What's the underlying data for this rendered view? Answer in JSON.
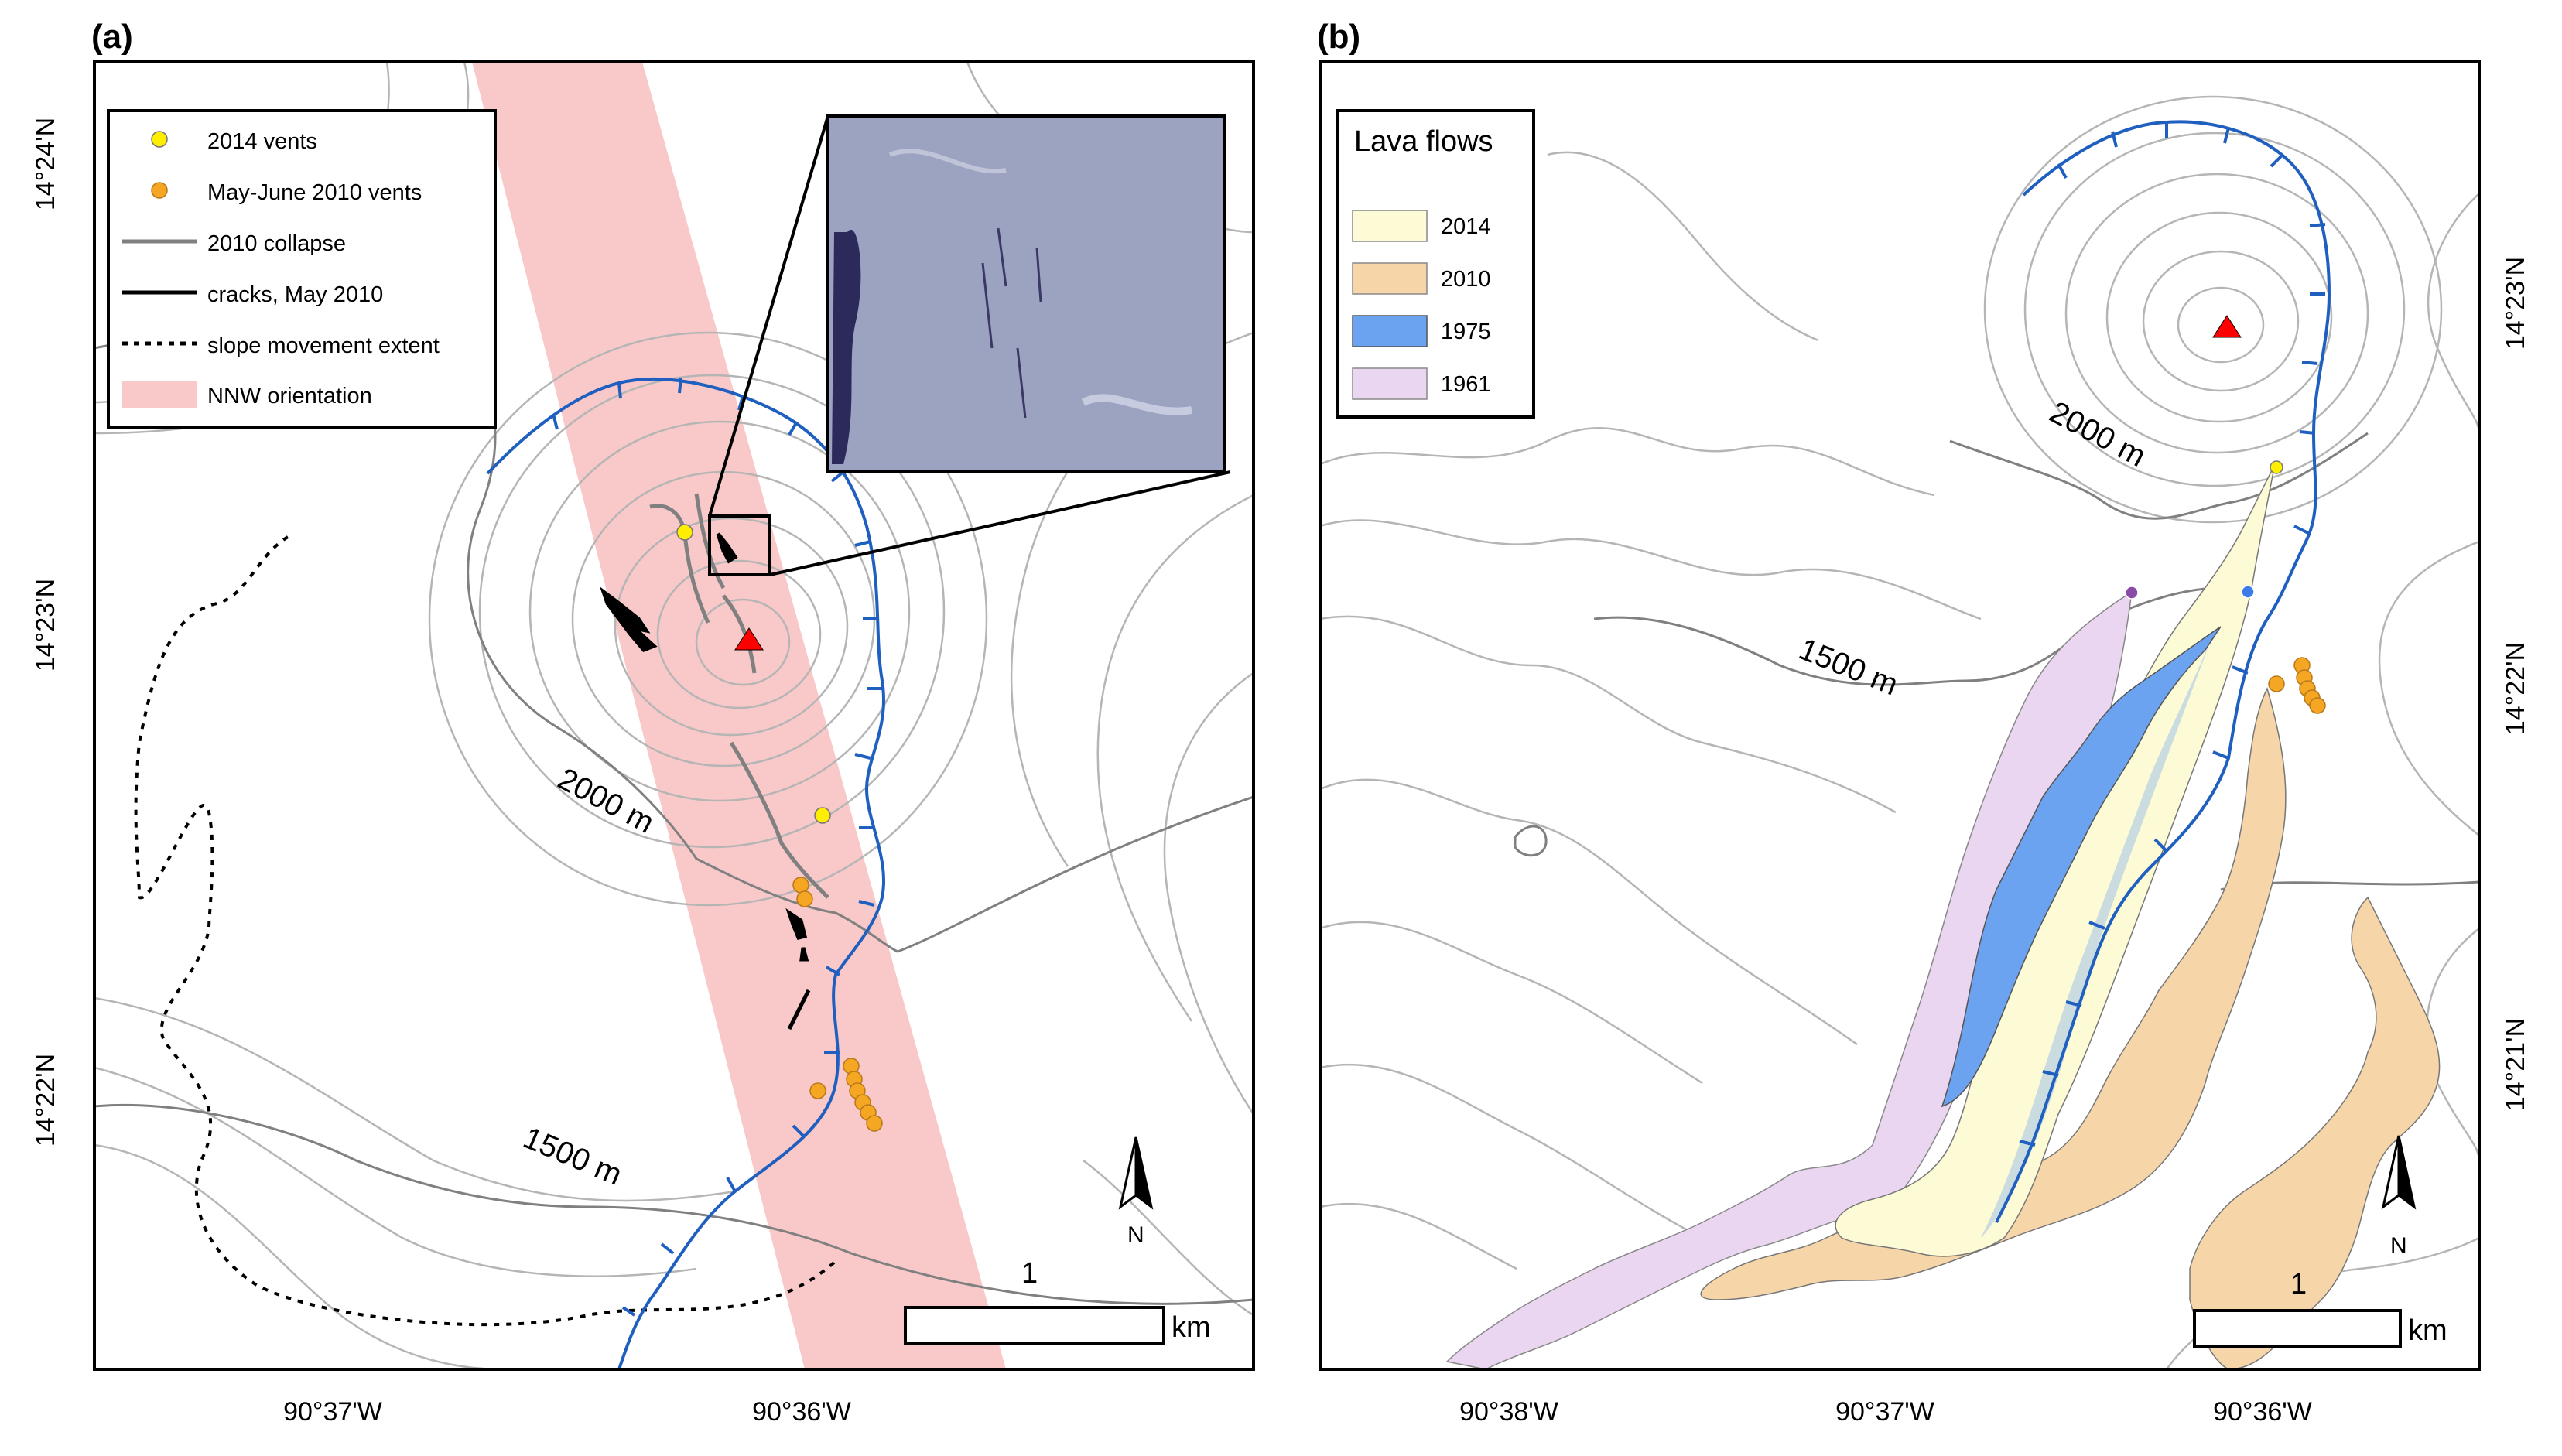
{
  "figure": {
    "panels": [
      {
        "id": "a",
        "label": "(a)",
        "lat_ticks": [
          "14°24'N",
          "14°23'N",
          "14°22'N"
        ],
        "lon_ticks": [
          "90°37'W",
          "90°36'W"
        ],
        "contour_labels": [
          "2000 m",
          "1500 m"
        ],
        "legend": [
          {
            "label": "2014 vents",
            "symbol": "yellow-dot",
            "color": "#ffee00"
          },
          {
            "label": "May-June 2010 vents",
            "symbol": "orange-dot",
            "color": "#f5a623"
          },
          {
            "label": "2010 collapse",
            "symbol": "gray-line",
            "color": "#808080"
          },
          {
            "label": "cracks, May 2010",
            "symbol": "black-line",
            "color": "#000000"
          },
          {
            "label": "slope movement extent",
            "symbol": "dotted-line",
            "color": "#000000"
          },
          {
            "label": "NNW orientation",
            "symbol": "pink-fill",
            "color": "#f9c8c8"
          }
        ],
        "scale_value": "1",
        "scale_unit": "km",
        "north": "N"
      },
      {
        "id": "b",
        "label": "(b)",
        "lat_ticks": [
          "14°23'N",
          "14°22'N",
          "14°21'N"
        ],
        "lon_ticks": [
          "90°38'W",
          "90°37'W",
          "90°36'W"
        ],
        "contour_labels": [
          "2000 m",
          "1500 m"
        ],
        "legend_title": "Lava flows",
        "legend": [
          {
            "label": "2014",
            "color": "#fdfad6"
          },
          {
            "label": "2010",
            "color": "#f6d6a8"
          },
          {
            "label": "1975",
            "color": "#6ba3f0"
          },
          {
            "label": "1961",
            "color": "#ead6f0"
          }
        ],
        "scale_value": "1",
        "scale_unit": "km",
        "north": "N"
      }
    ],
    "colors": {
      "contour": "#b5b5b5",
      "index_contour": "#808080",
      "fault": "#1f5fbf",
      "summit_marker": "#ff0000",
      "pink_band": "#f9c8c8"
    }
  }
}
